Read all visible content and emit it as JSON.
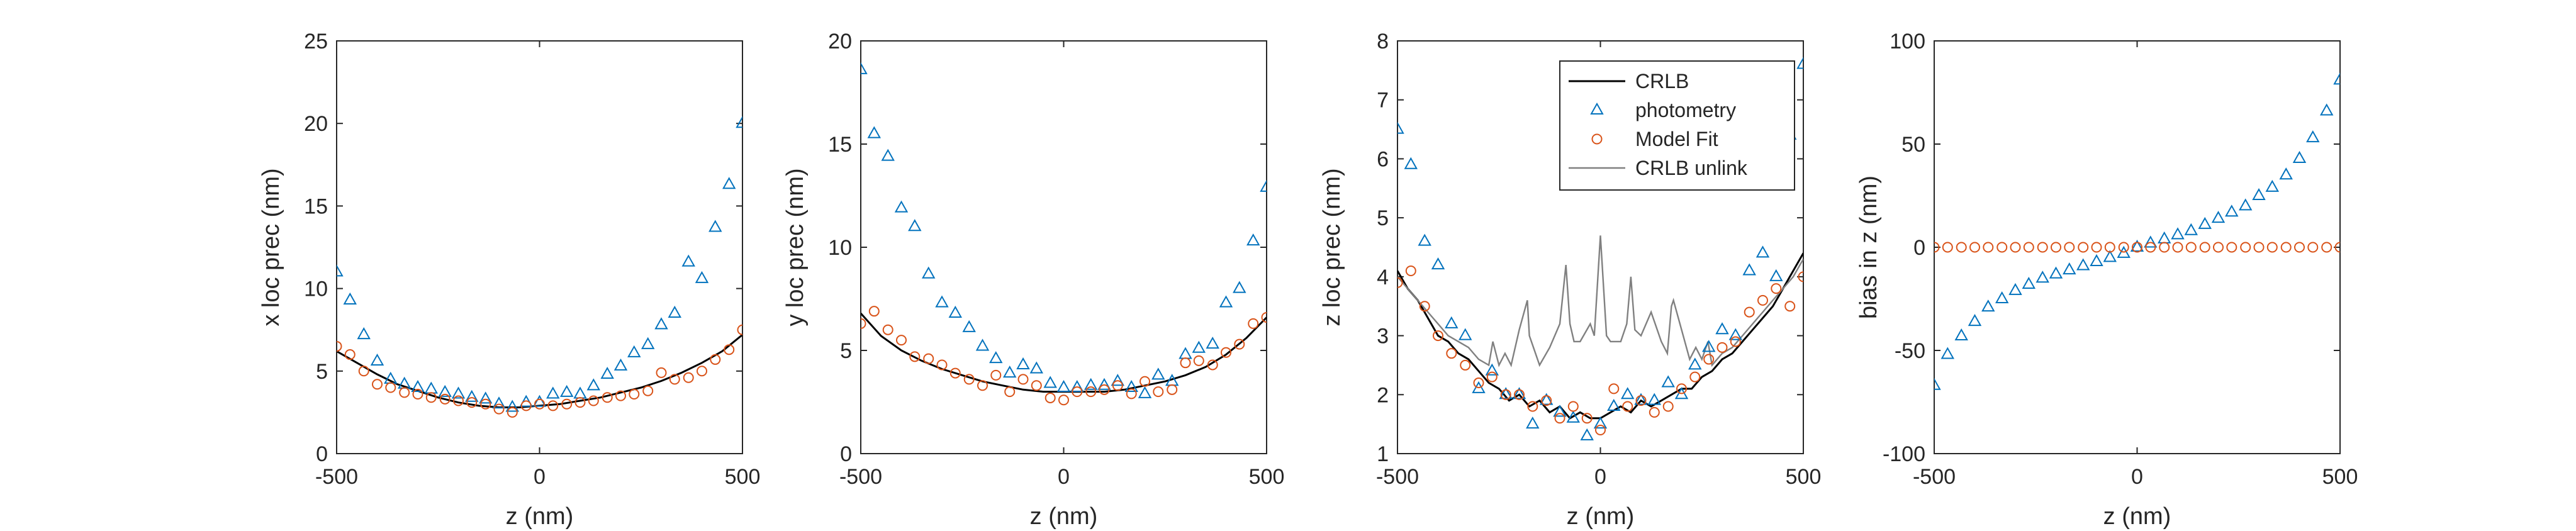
{
  "colors": {
    "photometry": "#0072BD",
    "model_fit": "#D95319",
    "crlb": "#000000",
    "crlb_unlink": "#808080",
    "axes": "#262626"
  },
  "chart_data": [
    {
      "type": "line",
      "id": "x-prec",
      "xlabel": "z (nm)",
      "ylabel": "x loc prec (nm)",
      "xlim": [
        -500,
        500
      ],
      "ylim": [
        0,
        25
      ],
      "xticks": [
        -500,
        0,
        500
      ],
      "yticks": [
        0,
        5,
        10,
        15,
        20,
        25
      ],
      "grid": false,
      "legend": false,
      "series": [
        {
          "name": "CRLB",
          "kind": "line",
          "color": "#000000",
          "x": [
            -500,
            -450,
            -400,
            -350,
            -300,
            -250,
            -200,
            -150,
            -100,
            -50,
            0,
            50,
            100,
            150,
            200,
            250,
            300,
            350,
            400,
            450,
            500
          ],
          "y": [
            6.2,
            5.5,
            4.8,
            4.2,
            3.8,
            3.4,
            3.1,
            2.9,
            2.8,
            2.8,
            2.9,
            3.0,
            3.2,
            3.4,
            3.7,
            4.0,
            4.4,
            4.9,
            5.5,
            6.2,
            7.2
          ]
        },
        {
          "name": "photometry",
          "kind": "triangle",
          "color": "#0072BD",
          "x": [
            -500,
            -467,
            -433,
            -400,
            -367,
            -333,
            -300,
            -267,
            -233,
            -200,
            -167,
            -133,
            -100,
            -67,
            -33,
            0,
            33,
            67,
            100,
            133,
            167,
            200,
            233,
            267,
            300,
            333,
            367,
            400,
            433,
            467,
            500
          ],
          "y": [
            11.0,
            9.3,
            7.2,
            5.6,
            4.5,
            4.2,
            4.0,
            3.9,
            3.7,
            3.6,
            3.4,
            3.3,
            3.0,
            2.8,
            3.1,
            3.1,
            3.6,
            3.7,
            3.6,
            4.1,
            4.8,
            5.3,
            6.1,
            6.6,
            7.8,
            8.5,
            11.6,
            10.6,
            13.7,
            16.3,
            20.0
          ]
        },
        {
          "name": "Model Fit",
          "kind": "circle",
          "color": "#D95319",
          "x": [
            -500,
            -467,
            -433,
            -400,
            -367,
            -333,
            -300,
            -267,
            -233,
            -200,
            -167,
            -133,
            -100,
            -67,
            -33,
            0,
            33,
            67,
            100,
            133,
            167,
            200,
            233,
            267,
            300,
            333,
            367,
            400,
            433,
            467,
            500
          ],
          "y": [
            6.5,
            6.0,
            5.0,
            4.2,
            4.0,
            3.7,
            3.6,
            3.4,
            3.3,
            3.2,
            3.1,
            3.0,
            2.7,
            2.5,
            2.9,
            3.0,
            2.9,
            3.0,
            3.1,
            3.2,
            3.4,
            3.5,
            3.6,
            3.8,
            4.9,
            4.5,
            4.6,
            5.0,
            5.7,
            6.3,
            7.5
          ]
        }
      ]
    },
    {
      "type": "line",
      "id": "y-prec",
      "xlabel": "z (nm)",
      "ylabel": "y loc prec (nm)",
      "xlim": [
        -500,
        500
      ],
      "ylim": [
        0,
        20
      ],
      "xticks": [
        -500,
        0,
        500
      ],
      "yticks": [
        0,
        5,
        10,
        15,
        20
      ],
      "grid": false,
      "legend": false,
      "series": [
        {
          "name": "CRLB",
          "kind": "line",
          "color": "#000000",
          "x": [
            -500,
            -450,
            -400,
            -350,
            -300,
            -250,
            -200,
            -150,
            -100,
            -50,
            0,
            50,
            100,
            150,
            200,
            250,
            300,
            350,
            400,
            450,
            500
          ],
          "y": [
            6.8,
            5.7,
            5.0,
            4.5,
            4.1,
            3.8,
            3.5,
            3.3,
            3.1,
            3.0,
            3.0,
            3.0,
            3.0,
            3.1,
            3.3,
            3.5,
            3.8,
            4.2,
            4.8,
            5.6,
            6.6
          ]
        },
        {
          "name": "photometry",
          "kind": "triangle",
          "color": "#0072BD",
          "x": [
            -500,
            -467,
            -433,
            -400,
            -367,
            -333,
            -300,
            -267,
            -233,
            -200,
            -167,
            -133,
            -100,
            -67,
            -33,
            0,
            33,
            67,
            100,
            133,
            167,
            200,
            233,
            267,
            300,
            333,
            367,
            400,
            433,
            467,
            500
          ],
          "y": [
            18.6,
            15.5,
            14.4,
            11.9,
            11.0,
            8.7,
            7.3,
            6.8,
            6.1,
            5.2,
            4.6,
            3.9,
            4.3,
            4.1,
            3.4,
            3.2,
            3.2,
            3.3,
            3.3,
            3.5,
            3.2,
            2.9,
            3.8,
            3.5,
            4.8,
            5.1,
            5.3,
            7.3,
            8.0,
            10.3,
            12.9
          ]
        },
        {
          "name": "Model Fit",
          "kind": "circle",
          "color": "#D95319",
          "x": [
            -500,
            -467,
            -433,
            -400,
            -367,
            -333,
            -300,
            -267,
            -233,
            -200,
            -167,
            -133,
            -100,
            -67,
            -33,
            0,
            33,
            67,
            100,
            133,
            167,
            200,
            233,
            267,
            300,
            333,
            367,
            400,
            433,
            467,
            500
          ],
          "y": [
            6.3,
            6.9,
            6.0,
            5.5,
            4.7,
            4.6,
            4.3,
            3.9,
            3.6,
            3.3,
            3.8,
            3.0,
            3.6,
            3.3,
            2.7,
            2.6,
            3.0,
            3.0,
            3.1,
            3.3,
            2.9,
            3.5,
            3.0,
            3.1,
            4.4,
            4.5,
            4.3,
            4.9,
            5.3,
            6.3,
            6.6
          ]
        }
      ]
    },
    {
      "type": "line",
      "id": "z-prec",
      "xlabel": "z (nm)",
      "ylabel": "z loc prec (nm)",
      "xlim": [
        -500,
        500
      ],
      "ylim": [
        1,
        8
      ],
      "xticks": [
        -500,
        0,
        500
      ],
      "yticks": [
        1,
        2,
        3,
        4,
        5,
        6,
        7,
        8
      ],
      "grid": false,
      "legend": true,
      "legend_position": "top-right",
      "legend_entries": [
        "CRLB",
        "photometry",
        "Model Fit",
        "CRLB unlink"
      ],
      "series": [
        {
          "name": "CRLB",
          "kind": "line",
          "color": "#000000",
          "x": [
            -500,
            -475,
            -450,
            -425,
            -400,
            -375,
            -350,
            -325,
            -300,
            -275,
            -250,
            -225,
            -200,
            -175,
            -150,
            -125,
            -100,
            -75,
            -50,
            -25,
            0,
            25,
            50,
            75,
            100,
            125,
            150,
            175,
            200,
            225,
            250,
            275,
            300,
            325,
            350,
            375,
            400,
            425,
            450,
            475,
            500
          ],
          "y": [
            4.1,
            3.8,
            3.6,
            3.3,
            3.0,
            2.9,
            2.7,
            2.6,
            2.4,
            2.2,
            2.1,
            1.9,
            2.0,
            1.8,
            1.9,
            1.7,
            1.8,
            1.6,
            1.7,
            1.6,
            1.6,
            1.7,
            1.8,
            1.7,
            1.9,
            1.8,
            1.9,
            2.0,
            2.1,
            2.1,
            2.3,
            2.4,
            2.6,
            2.7,
            2.9,
            3.1,
            3.3,
            3.5,
            3.8,
            4.1,
            4.4
          ]
        },
        {
          "name": "CRLB unlink",
          "kind": "line",
          "color": "#808080",
          "x": [
            -500,
            -475,
            -450,
            -425,
            -400,
            -375,
            -350,
            -325,
            -300,
            -275,
            -265,
            -250,
            -235,
            -220,
            -200,
            -180,
            -175,
            -165,
            -150,
            -125,
            -100,
            -85,
            -75,
            -65,
            -50,
            -25,
            -15,
            0,
            15,
            25,
            50,
            65,
            75,
            85,
            100,
            125,
            150,
            165,
            175,
            180,
            200,
            220,
            235,
            250,
            265,
            275,
            300,
            325,
            350,
            375,
            400,
            425,
            450,
            475,
            500
          ],
          "y": [
            4.0,
            3.8,
            3.6,
            3.4,
            3.2,
            3.0,
            2.9,
            2.8,
            2.6,
            2.5,
            2.9,
            2.5,
            2.7,
            2.5,
            3.1,
            3.6,
            3.0,
            2.8,
            2.5,
            2.8,
            3.2,
            4.2,
            3.2,
            2.9,
            2.9,
            3.2,
            3.0,
            4.7,
            3.0,
            2.9,
            2.9,
            3.2,
            4.0,
            3.1,
            3.0,
            3.4,
            2.9,
            2.7,
            3.5,
            3.6,
            3.1,
            2.6,
            2.8,
            2.6,
            2.9,
            2.5,
            2.7,
            2.8,
            3.0,
            3.2,
            3.4,
            3.6,
            3.8,
            4.0,
            4.3
          ]
        },
        {
          "name": "photometry",
          "kind": "triangle",
          "color": "#0072BD",
          "x": [
            -500,
            -467,
            -433,
            -400,
            -367,
            -333,
            -300,
            -267,
            -233,
            -200,
            -167,
            -133,
            -100,
            -67,
            -33,
            0,
            33,
            67,
            100,
            133,
            167,
            200,
            233,
            267,
            300,
            333,
            367,
            400,
            433,
            467,
            500
          ],
          "y": [
            6.5,
            5.9,
            4.6,
            4.2,
            3.2,
            3.0,
            2.1,
            2.4,
            2.0,
            2.0,
            1.5,
            1.9,
            1.7,
            1.6,
            1.3,
            1.5,
            1.8,
            2.0,
            1.9,
            1.9,
            2.2,
            2.0,
            2.5,
            2.8,
            3.1,
            3.0,
            4.1,
            4.4,
            4.0,
            6.4,
            7.6
          ]
        },
        {
          "name": "Model Fit",
          "kind": "circle",
          "color": "#D95319",
          "x": [
            -500,
            -467,
            -433,
            -400,
            -367,
            -333,
            -300,
            -267,
            -233,
            -200,
            -167,
            -133,
            -100,
            -67,
            -33,
            0,
            33,
            67,
            100,
            133,
            167,
            200,
            233,
            267,
            300,
            333,
            367,
            400,
            433,
            467,
            500
          ],
          "y": [
            3.9,
            4.1,
            3.5,
            3.0,
            2.7,
            2.5,
            2.2,
            2.3,
            2.0,
            2.0,
            1.8,
            1.9,
            1.6,
            1.8,
            1.6,
            1.4,
            2.1,
            1.8,
            1.9,
            1.7,
            1.8,
            2.1,
            2.3,
            2.6,
            2.8,
            2.9,
            3.4,
            3.6,
            3.8,
            3.5,
            4.0
          ]
        }
      ]
    },
    {
      "type": "scatter",
      "id": "bias-z",
      "xlabel": "z (nm)",
      "ylabel": "bias in z (nm)",
      "xlim": [
        -500,
        500
      ],
      "ylim": [
        -100,
        100
      ],
      "xticks": [
        -500,
        0,
        500
      ],
      "yticks": [
        -100,
        -50,
        0,
        50,
        100
      ],
      "grid": false,
      "legend": false,
      "series": [
        {
          "name": "photometry",
          "kind": "triangle",
          "color": "#0072BD",
          "x": [
            -500,
            -467,
            -433,
            -400,
            -367,
            -333,
            -300,
            -267,
            -233,
            -200,
            -167,
            -133,
            -100,
            -67,
            -33,
            0,
            33,
            67,
            100,
            133,
            167,
            200,
            233,
            267,
            300,
            333,
            367,
            400,
            433,
            467,
            500
          ],
          "y": [
            -67,
            -52,
            -43,
            -36,
            -29,
            -25,
            -21,
            -18,
            -15,
            -13,
            -11,
            -9,
            -7,
            -5,
            -3,
            0,
            2,
            4,
            6,
            8,
            11,
            14,
            17,
            20,
            25,
            29,
            35,
            43,
            53,
            66,
            81
          ]
        },
        {
          "name": "Model Fit",
          "kind": "circle",
          "color": "#D95319",
          "x": [
            -500,
            -467,
            -433,
            -400,
            -367,
            -333,
            -300,
            -267,
            -233,
            -200,
            -167,
            -133,
            -100,
            -67,
            -33,
            0,
            33,
            67,
            100,
            133,
            167,
            200,
            233,
            267,
            300,
            333,
            367,
            400,
            433,
            467,
            500
          ],
          "y": [
            0,
            0,
            0,
            0,
            0,
            0,
            0,
            0,
            0,
            0,
            0,
            0,
            0,
            0,
            0,
            0,
            0,
            0,
            0,
            0,
            0,
            0,
            0,
            0,
            0,
            0,
            0,
            0,
            0,
            0,
            0
          ]
        }
      ]
    }
  ]
}
